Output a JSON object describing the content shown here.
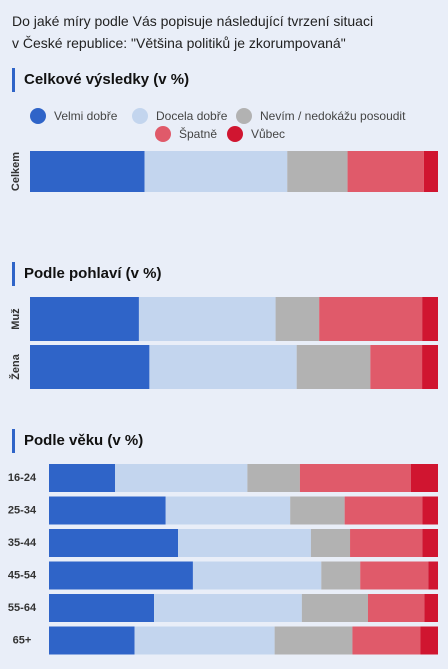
{
  "question": {
    "line1": "Do jaké míry podle Vás popisuje následující tvrzení situaci",
    "line2": "v České republice: \"Většina politiků je zkorumpovaná\""
  },
  "sections": {
    "total": "Celkové výsledky (v %)",
    "gender": "Podle pohlaví (v %)",
    "age": "Podle věku (v %)"
  },
  "legend": [
    {
      "label": "Velmi dobře",
      "color": "#2f64c8"
    },
    {
      "label": "Docela dobře",
      "color": "#c3d5ee"
    },
    {
      "label": "Nevím / nedokážu posoudit",
      "color": "#b2b2b2"
    },
    {
      "label": "Špatně",
      "color": "#e05a6a"
    },
    {
      "label": "Vůbec",
      "color": "#d01530"
    }
  ],
  "chart_data": [
    {
      "type": "bar",
      "orientation": "horizontal-stacked",
      "categories": [
        "Celkem"
      ],
      "series": [
        {
          "name": "Velmi dobře",
          "values": [
            28.5
          ]
        },
        {
          "name": "Docela dobře",
          "values": [
            35.5
          ]
        },
        {
          "name": "Nevím / nedokážu posoudit",
          "values": [
            15
          ]
        },
        {
          "name": "Špatně",
          "values": [
            19
          ]
        },
        {
          "name": "Vůbec",
          "values": [
            3.5
          ]
        }
      ]
    },
    {
      "type": "bar",
      "orientation": "horizontal-stacked",
      "categories": [
        "Muž",
        "Žena"
      ],
      "series": [
        {
          "name": "Velmi dobře",
          "values": [
            27.5,
            30
          ]
        },
        {
          "name": "Docela dobře",
          "values": [
            34.5,
            37
          ]
        },
        {
          "name": "Nevím / nedokážu posoudit",
          "values": [
            11,
            18.5
          ]
        },
        {
          "name": "Špatně",
          "values": [
            26,
            13
          ]
        },
        {
          "name": "Vůbec",
          "values": [
            4,
            4
          ]
        }
      ]
    },
    {
      "type": "bar",
      "orientation": "horizontal-stacked",
      "categories": [
        "16-24",
        "25-34",
        "35-44",
        "45-54",
        "55-64",
        "65+"
      ],
      "series": [
        {
          "name": "Velmi dobře",
          "values": [
            17,
            30,
            33,
            37,
            27,
            22
          ]
        },
        {
          "name": "Docela dobře",
          "values": [
            34,
            32,
            34,
            33,
            38,
            36
          ]
        },
        {
          "name": "Nevím / nedokážu posoudit",
          "values": [
            13.5,
            14,
            10,
            10,
            17,
            20
          ]
        },
        {
          "name": "Špatně",
          "values": [
            28.5,
            20,
            18.5,
            17.5,
            14.5,
            17.5
          ]
        },
        {
          "name": "Vůbec",
          "values": [
            7,
            4,
            4,
            2.5,
            3.5,
            4.5
          ]
        }
      ]
    }
  ]
}
